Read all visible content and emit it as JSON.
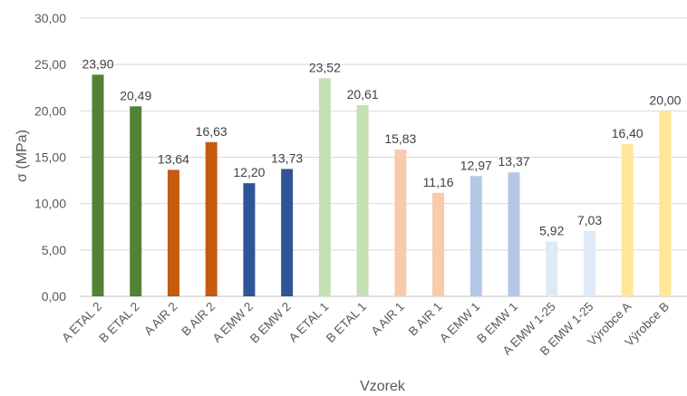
{
  "chart_data": {
    "type": "bar",
    "title": "",
    "xlabel": "Vzorek",
    "ylabel": "σ (MPa)",
    "ylim": [
      0,
      30
    ],
    "yticks": [
      0,
      5,
      10,
      15,
      20,
      25,
      30
    ],
    "ytick_labels": [
      "0,00",
      "5,00",
      "10,00",
      "15,00",
      "20,00",
      "25,00",
      "30,00"
    ],
    "grid": true,
    "legend": "none",
    "categories": [
      "A ETAL 2",
      "B ETAL 2",
      "A AIR 2",
      "B AIR 2",
      "A EMW 2",
      "B EMW 2",
      "A ETAL 1",
      "B ETAL 1",
      "A AIR 1",
      "B AIR 1",
      "A EMW 1",
      "B EMW 1",
      "A EMW 1-25",
      "B EMW 1-25",
      "Výrobce A",
      "Výrobce B"
    ],
    "values": [
      23.9,
      20.49,
      13.64,
      16.63,
      12.2,
      13.73,
      23.52,
      20.61,
      15.83,
      11.16,
      12.97,
      13.37,
      5.92,
      7.03,
      16.4,
      20.0
    ],
    "value_labels": [
      "23,90",
      "20,49",
      "13,64",
      "16,63",
      "12,20",
      "13,73",
      "23,52",
      "20,61",
      "15,83",
      "11,16",
      "12,97",
      "13,37",
      "5,92",
      "7,03",
      "16,40",
      "20,00"
    ],
    "colors": [
      "#548235",
      "#548235",
      "#C55A11",
      "#C55A11",
      "#2F5597",
      "#2F5597",
      "#C5E0B4",
      "#C5E0B4",
      "#F8CBAD",
      "#F8CBAD",
      "#B4C7E7",
      "#B4C7E7",
      "#DEEBF7",
      "#DEEBF7",
      "#FFE699",
      "#FFE699"
    ]
  }
}
